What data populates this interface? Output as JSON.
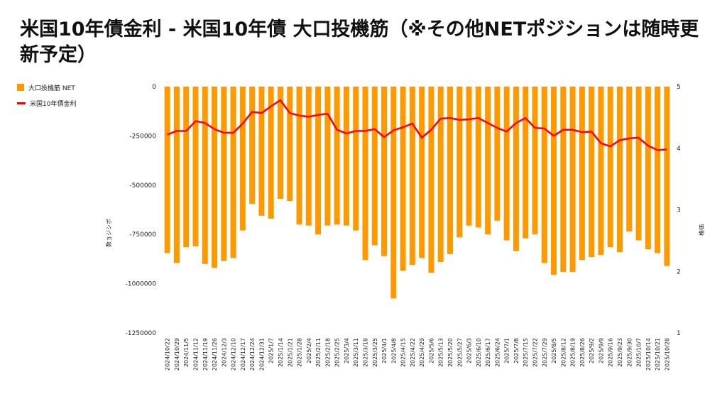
{
  "chart_data": {
    "type": "bar",
    "title": "米国10年債金利 - 米国10年債 大口投機筋（※その他NETポジションは随時更新予定）",
    "categories": [
      "2024/10/22",
      "2024/10/29",
      "2024/11/5",
      "2024/11/12",
      "2024/11/19",
      "2024/11/26",
      "2024/12/3",
      "2024/12/10",
      "2024/12/17",
      "2024/12/24",
      "2024/12/31",
      "2025/1/7",
      "2025/1/14",
      "2025/1/21",
      "2025/1/28",
      "2025/2/4",
      "2025/2/11",
      "2025/2/18",
      "2025/2/25",
      "2025/3/4",
      "2025/3/11",
      "2025/3/18",
      "2025/3/25",
      "2025/4/1",
      "2025/4/8",
      "2025/4/15",
      "2025/4/22",
      "2025/4/29",
      "2025/5/6",
      "2025/5/13",
      "2025/5/20",
      "2025/5/27",
      "2025/6/3",
      "2025/6/10",
      "2025/6/17",
      "2025/6/24",
      "2025/7/1",
      "2025/7/8",
      "2025/7/15",
      "2025/7/22",
      "2025/7/29",
      "2025/8/5",
      "2025/8/12",
      "2025/8/19",
      "2025/8/26",
      "2025/9/2",
      "2025/9/9",
      "2025/9/16",
      "2025/9/23",
      "2025/9/30",
      "2025/10/7",
      "2025/10/14",
      "2025/10/21",
      "2025/10/28"
    ],
    "series": [
      {
        "name": "大口投機筋  NET",
        "type": "bar",
        "axis": "left",
        "color": "#ff9900",
        "values": [
          -845000,
          -895000,
          -815000,
          -810000,
          -900000,
          -920000,
          -885000,
          -870000,
          -730000,
          -595000,
          -655000,
          -670000,
          -570000,
          -580000,
          -700000,
          -705000,
          -750000,
          -705000,
          -700000,
          -705000,
          -730000,
          -880000,
          -805000,
          -860000,
          -1075000,
          -935000,
          -905000,
          -870000,
          -945000,
          -890000,
          -850000,
          -765000,
          -705000,
          -715000,
          -750000,
          -680000,
          -780000,
          -835000,
          -770000,
          -750000,
          -895000,
          -955000,
          -940000,
          -940000,
          -880000,
          -865000,
          -855000,
          -815000,
          -840000,
          -735000,
          -780000,
          -825000,
          -845000,
          -910000
        ]
      },
      {
        "name": "米国10年債金利",
        "type": "line",
        "axis": "right",
        "color": "#ff0000",
        "values": [
          4.22,
          4.28,
          4.28,
          4.44,
          4.41,
          4.31,
          4.25,
          4.25,
          4.4,
          4.59,
          4.57,
          4.68,
          4.78,
          4.57,
          4.53,
          4.51,
          4.54,
          4.56,
          4.3,
          4.24,
          4.28,
          4.28,
          4.31,
          4.18,
          4.29,
          4.34,
          4.4,
          4.17,
          4.3,
          4.48,
          4.49,
          4.46,
          4.47,
          4.49,
          4.41,
          4.33,
          4.27,
          4.41,
          4.49,
          4.33,
          4.32,
          4.2,
          4.3,
          4.3,
          4.26,
          4.27,
          4.08,
          4.03,
          4.13,
          4.16,
          4.17,
          4.04,
          3.97,
          3.98
        ]
      }
    ],
    "y_left": {
      "label": "数ョジシポ",
      "ticks": [
        "0",
        "-250000",
        "-500000",
        "-750000",
        "-1000000",
        "-1250000"
      ],
      "ylim": [
        -1250000,
        0
      ]
    },
    "y_right": {
      "label": "格価",
      "ticks": [
        "5",
        "4",
        "3",
        "2",
        "1"
      ],
      "ylim": [
        1,
        5
      ]
    },
    "legend_position": "top-left",
    "grid": false
  }
}
